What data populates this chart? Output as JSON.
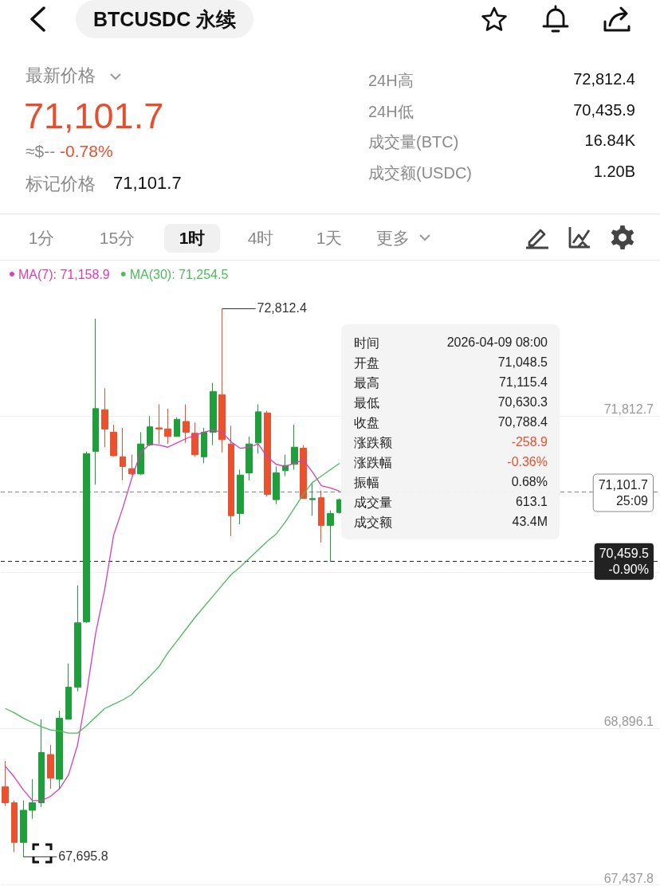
{
  "chart_data": {
    "type": "candlestick",
    "title": "BTCUSDC 永续",
    "categories": [
      null,
      null,
      null,
      null,
      null,
      null,
      null,
      null,
      null,
      null,
      null,
      null,
      null,
      null,
      null,
      null,
      null,
      null,
      null,
      null,
      null,
      null,
      null,
      null,
      null,
      null,
      null,
      null,
      null,
      null,
      null,
      null,
      null,
      null,
      null,
      null,
      null,
      null
    ],
    "ohlc": [
      [
        68350,
        68590,
        68170,
        68200
      ],
      [
        68200,
        68220,
        67740,
        67830
      ],
      [
        67830,
        68220,
        67695.8,
        68130
      ],
      [
        68130,
        68420,
        68050,
        68200
      ],
      [
        68200,
        68980,
        68160,
        68670
      ],
      [
        68650,
        68740,
        68330,
        68430
      ],
      [
        68420,
        69060,
        68330,
        68990
      ],
      [
        68980,
        69500,
        68980,
        69280
      ],
      [
        69280,
        70230,
        69240,
        69880
      ],
      [
        69890,
        71480,
        69880,
        71460
      ],
      [
        71480,
        72720,
        71170,
        71880
      ],
      [
        71870,
        72070,
        71520,
        71690
      ],
      [
        71660,
        71730,
        71430,
        71440
      ],
      [
        71430,
        71700,
        71210,
        71340
      ],
      [
        71320,
        71450,
        71260,
        71270
      ],
      [
        71270,
        71660,
        71260,
        71550
      ],
      [
        71540,
        71810,
        71530,
        71710
      ],
      [
        71700,
        71920,
        71550,
        71690
      ],
      [
        71690,
        71880,
        71550,
        71620
      ],
      [
        71620,
        71800,
        71620,
        71780
      ],
      [
        71760,
        71920,
        71560,
        71660
      ],
      [
        71650,
        71750,
        71430,
        71450
      ],
      [
        71430,
        71700,
        71370,
        71660
      ],
      [
        71660,
        72120,
        71540,
        72040
      ],
      [
        72010,
        72812.4,
        71470,
        71590
      ],
      [
        71550,
        71720,
        70690,
        70880
      ],
      [
        70900,
        71310,
        70800,
        71260
      ],
      [
        71280,
        71620,
        71210,
        71550
      ],
      [
        71560,
        71920,
        71460,
        71850
      ],
      [
        71840,
        71860,
        71060,
        71080
      ],
      [
        71030,
        71340,
        70990,
        71280
      ],
      [
        71300,
        71450,
        71250,
        71350
      ],
      [
        71360,
        71730,
        71310,
        71520
      ],
      [
        71510,
        71540,
        71040,
        71040
      ],
      [
        71030,
        71180,
        70880,
        71040
      ],
      [
        71048.5,
        71115.4,
        70630.3,
        70788.4
      ],
      [
        70790,
        70930,
        70450,
        70900
      ],
      [
        70910,
        71040,
        70900,
        71030
      ]
    ],
    "colors": [
      "#e9512f",
      "#e9512f",
      "#1f9e3c",
      "#1f9e3c",
      "#1f9e3c",
      "#e9512f",
      "#1f9e3c",
      "#1f9e3c",
      "#1f9e3c",
      "#1f9e3c",
      "#1f9e3c",
      "#e9512f",
      "#e9512f",
      "#e9512f",
      "#e9512f",
      "#1f9e3c",
      "#1f9e3c",
      "#e9512f",
      "#e9512f",
      "#1f9e3c",
      "#e9512f",
      "#e9512f",
      "#1f9e3c",
      "#1f9e3c",
      "#e9512f",
      "#e9512f",
      "#1f9e3c",
      "#1f9e3c",
      "#1f9e3c",
      "#e9512f",
      "#1f9e3c",
      "#1f9e3c",
      "#1f9e3c",
      "#e9512f",
      "#1f9e3c",
      "#e9512f",
      "#1f9e3c",
      "#1f9e3c"
    ],
    "series": [
      {
        "type": "line",
        "name": "MA(7): 71,158.9",
        "color": "#d63fb5",
        "values": [
          68540,
          68440,
          68320,
          68220,
          68220,
          68260,
          68330,
          68460,
          68740,
          69220,
          69780,
          70190,
          70700,
          70950,
          71230,
          71470,
          71550,
          71540,
          71520,
          71560,
          71600,
          71630,
          71660,
          71680,
          71660,
          71570,
          71510,
          71520,
          71550,
          71430,
          71360,
          71340,
          71370,
          71400,
          71290,
          71160,
          71140,
          71110
        ]
      },
      {
        "type": "line",
        "name": "MA(30): 71,254.5",
        "color": "#4cbb5a",
        "values": [
          69080,
          69040,
          68990,
          68950,
          68910,
          68880,
          68870,
          68850,
          68850,
          68920,
          69000,
          69080,
          69120,
          69160,
          69210,
          69300,
          69380,
          69470,
          69600,
          69710,
          69820,
          69930,
          70030,
          70130,
          70230,
          70330,
          70400,
          70480,
          70560,
          70640,
          70710,
          70820,
          70950,
          71080,
          71190,
          71250,
          71310,
          71370
        ]
      }
    ],
    "ylim": [
      67437.8,
      73270
    ],
    "yticks": [
      {
        "value": 67437.8,
        "label": "67,437.8"
      },
      {
        "value": 68896.1,
        "label": "68,896.1"
      },
      {
        "value": 70354.4,
        "label": null
      },
      {
        "value": 71812.7,
        "label": "71,812.7"
      }
    ],
    "grid": "y",
    "legend": "top left",
    "marker": "none",
    "line_style": "solid",
    "ref_lines": [
      {
        "axis": "y",
        "value": 71101.7,
        "label": "71,101.7\n25:09",
        "color": "#888888",
        "line_style": "dashed"
      },
      {
        "axis": "y",
        "value": 70459.5,
        "label": "70,459.5\n-0.90%",
        "color": "#222222",
        "line_style": "dashed"
      }
    ],
    "annotations": [
      "最新价格",
      "71,101.7",
      "≈$--",
      "-0.78%",
      "标记价格",
      "71,101.7",
      "24H高",
      "72,812.4",
      "24H低",
      "70,435.9",
      "成交量(BTC)",
      "16.84K",
      "成交额(USDC)",
      "1.20B",
      "1分",
      "15分",
      "1时",
      "4时",
      "1天",
      "更多",
      "时间",
      "2026-04-09 08:00",
      "开盘",
      "71,048.5",
      "最高",
      "71,115.4",
      "最低",
      "70,630.3",
      "收盘",
      "70,788.4",
      "涨跌额",
      "-258.9",
      "涨跌幅",
      "-0.36%",
      "振幅",
      "0.68%",
      "成交量",
      "613.1",
      "成交额",
      "43.4M",
      "72,812.4",
      "67,695.8"
    ]
  }
}
